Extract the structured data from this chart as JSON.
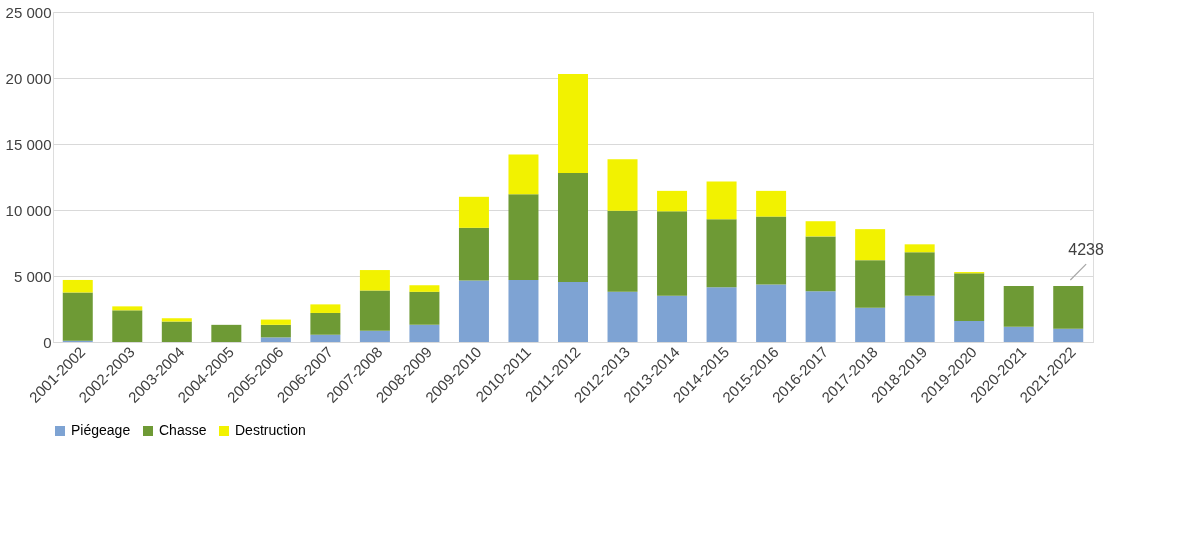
{
  "chart_data": {
    "type": "bar",
    "stacked": true,
    "categories": [
      "2001-2002",
      "2002-2003",
      "2003-2004",
      "2004-2005",
      "2005-2006",
      "2006-2007",
      "2007-2008",
      "2008-2009",
      "2009-2010",
      "2010-2011",
      "2011-2012",
      "2012-2013",
      "2013-2014",
      "2014-2015",
      "2015-2016",
      "2016-2017",
      "2017-2018",
      "2018-2019",
      "2019-2020",
      "2020-2021",
      "2021-2022"
    ],
    "series": [
      {
        "name": "Piégeage",
        "color": "#7ea3d3",
        "values": [
          100,
          0,
          0,
          0,
          350,
          550,
          850,
          1300,
          4650,
          4700,
          4550,
          3800,
          3500,
          4150,
          4350,
          3850,
          2600,
          3500,
          1600,
          1150,
          1000
        ]
      },
      {
        "name": "Chasse",
        "color": "#6e9a35",
        "values": [
          3650,
          2400,
          1550,
          1300,
          950,
          1650,
          3050,
          2500,
          4000,
          6500,
          8250,
          6150,
          6400,
          5150,
          5150,
          4150,
          3600,
          3300,
          3600,
          3100,
          3238
        ]
      },
      {
        "name": "Destruction",
        "color": "#f2f200",
        "values": [
          950,
          300,
          250,
          0,
          400,
          650,
          1550,
          500,
          2350,
          3000,
          7500,
          3900,
          1550,
          2850,
          1950,
          1150,
          2350,
          600,
          100,
          0,
          0
        ]
      }
    ],
    "ylim": [
      0,
      25000
    ],
    "yticks": [
      {
        "value": 0,
        "label": "0"
      },
      {
        "value": 5000,
        "label": "5 000"
      },
      {
        "value": 10000,
        "label": "10 000"
      },
      {
        "value": 15000,
        "label": "15 000"
      },
      {
        "value": 20000,
        "label": "20 000"
      },
      {
        "value": 25000,
        "label": "25 000"
      }
    ],
    "grid": "y",
    "legend": "bottom",
    "annotations": [
      {
        "text": "4238",
        "x": "2021-2022",
        "y": 4238
      }
    ]
  }
}
